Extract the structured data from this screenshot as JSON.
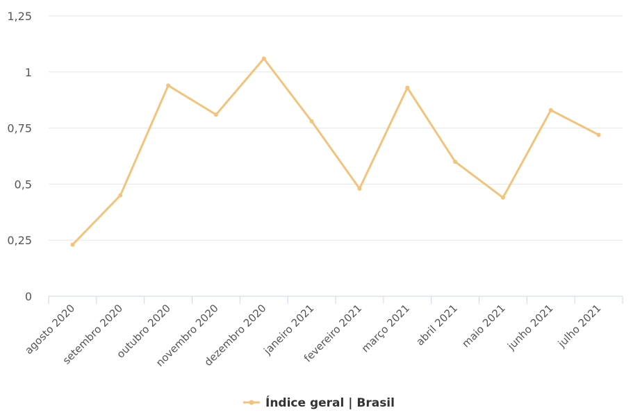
{
  "chart_data": {
    "type": "line",
    "categories": [
      "agosto 2020",
      "setembro 2020",
      "outubro 2020",
      "novembro 2020",
      "dezembro 2020",
      "janeiro 2021",
      "fevereiro 2021",
      "março 2021",
      "abril 2021",
      "maio 2021",
      "junho 2021",
      "julho 2021"
    ],
    "series": [
      {
        "name": "Índice geral | Brasil",
        "values": [
          0.23,
          0.45,
          0.94,
          0.81,
          1.06,
          0.78,
          0.48,
          0.93,
          0.6,
          0.44,
          0.83,
          0.72
        ],
        "color": "#F2C37B"
      }
    ],
    "yticks": [
      "0",
      "0,25",
      "0,5",
      "0,75",
      "1",
      "1,25"
    ],
    "ylim": [
      0,
      1.25
    ],
    "grid": true,
    "legend_position": "bottom-center"
  }
}
